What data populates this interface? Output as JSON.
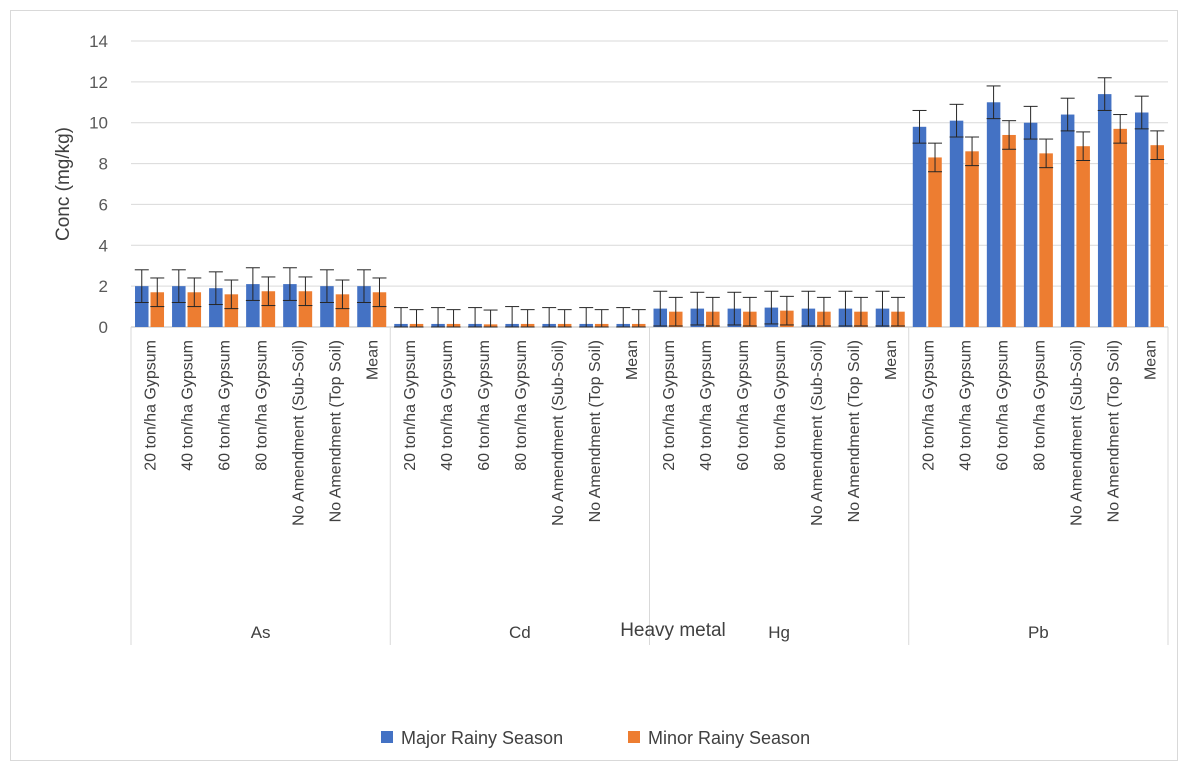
{
  "chart_data": {
    "type": "bar",
    "title": "",
    "xlabel": "Heavy metal",
    "ylabel": "Conc (mg/kg)",
    "ylim": [
      0,
      14
    ],
    "yticks": [
      0,
      2,
      4,
      6,
      8,
      10,
      12,
      14
    ],
    "grid": true,
    "legend_position": "bottom",
    "groups": [
      {
        "name": "As",
        "categories": [
          "20 ton/ha Gypsum",
          "40 ton/ha Gypsum",
          "60 ton/ha Gypsum",
          "80 ton/ha Gypsum",
          "No Amendment (Sub-Soil)",
          "No Amendment (Top Soil)",
          "Mean"
        ],
        "series": [
          {
            "name": "Major Rainy Season",
            "values": [
              2.0,
              2.0,
              1.9,
              2.1,
              2.1,
              2.0,
              2.0
            ],
            "errors": [
              0.8,
              0.8,
              0.8,
              0.8,
              0.8,
              0.8,
              0.8
            ]
          },
          {
            "name": "Minor Rainy Season",
            "values": [
              1.7,
              1.7,
              1.6,
              1.75,
              1.75,
              1.6,
              1.7
            ],
            "errors": [
              0.7,
              0.7,
              0.7,
              0.7,
              0.7,
              0.7,
              0.7
            ]
          }
        ]
      },
      {
        "name": "Cd",
        "categories": [
          "20 ton/ha Gypsum",
          "40 ton/ha Gypsum",
          "60 ton/ha Gypsum",
          "80 ton/ha Gypsum",
          "No Amendment (Sub-Soil)",
          "No Amendment (Top Soil)",
          "Mean"
        ],
        "series": [
          {
            "name": "Major Rainy Season",
            "values": [
              0.15,
              0.15,
              0.15,
              0.15,
              0.15,
              0.15,
              0.15
            ],
            "errors": [
              0.8,
              0.8,
              0.8,
              0.85,
              0.8,
              0.8,
              0.8
            ]
          },
          {
            "name": "Minor Rainy Season",
            "values": [
              0.15,
              0.15,
              0.13,
              0.15,
              0.15,
              0.15,
              0.15
            ],
            "errors": [
              0.7,
              0.7,
              0.7,
              0.7,
              0.7,
              0.7,
              0.7
            ]
          }
        ]
      },
      {
        "name": "Hg",
        "categories": [
          "20 ton/ha Gypsum",
          "40 ton/ha Gypsum",
          "60 ton/ha Gypsum",
          "80 ton/ha Gypsum",
          "No Amendment (Sub-Soil)",
          "No Amendment (Top Soil)",
          "Mean"
        ],
        "series": [
          {
            "name": "Major Rainy Season",
            "values": [
              0.9,
              0.9,
              0.9,
              0.95,
              0.9,
              0.9,
              0.9
            ],
            "errors": [
              0.85,
              0.8,
              0.8,
              0.8,
              0.85,
              0.85,
              0.85
            ]
          },
          {
            "name": "Minor Rainy Season",
            "values": [
              0.75,
              0.75,
              0.75,
              0.8,
              0.75,
              0.75,
              0.75
            ],
            "errors": [
              0.7,
              0.7,
              0.7,
              0.7,
              0.7,
              0.7,
              0.7
            ]
          }
        ]
      },
      {
        "name": "Pb",
        "categories": [
          "20 ton/ha Gypsum",
          "40 ton/ha Gypsum",
          "60 ton/ha Gypsum",
          "80 ton/ha Gypsum",
          "No Amendment (Sub-Soil)",
          "No Amendment (Top Soil)",
          "Mean"
        ],
        "series": [
          {
            "name": "Major Rainy Season",
            "values": [
              9.8,
              10.1,
              11.0,
              10.0,
              10.4,
              11.4,
              10.5
            ],
            "errors": [
              0.8,
              0.8,
              0.8,
              0.8,
              0.8,
              0.8,
              0.8
            ]
          },
          {
            "name": "Minor Rainy Season",
            "values": [
              8.3,
              8.6,
              9.4,
              8.5,
              8.85,
              9.7,
              8.9
            ],
            "errors": [
              0.7,
              0.7,
              0.7,
              0.7,
              0.7,
              0.7,
              0.7
            ]
          }
        ]
      }
    ],
    "legend": [
      {
        "name": "Major Rainy Season",
        "color": "#4472c4"
      },
      {
        "name": "Minor Rainy Season",
        "color": "#ed7d31"
      }
    ]
  }
}
